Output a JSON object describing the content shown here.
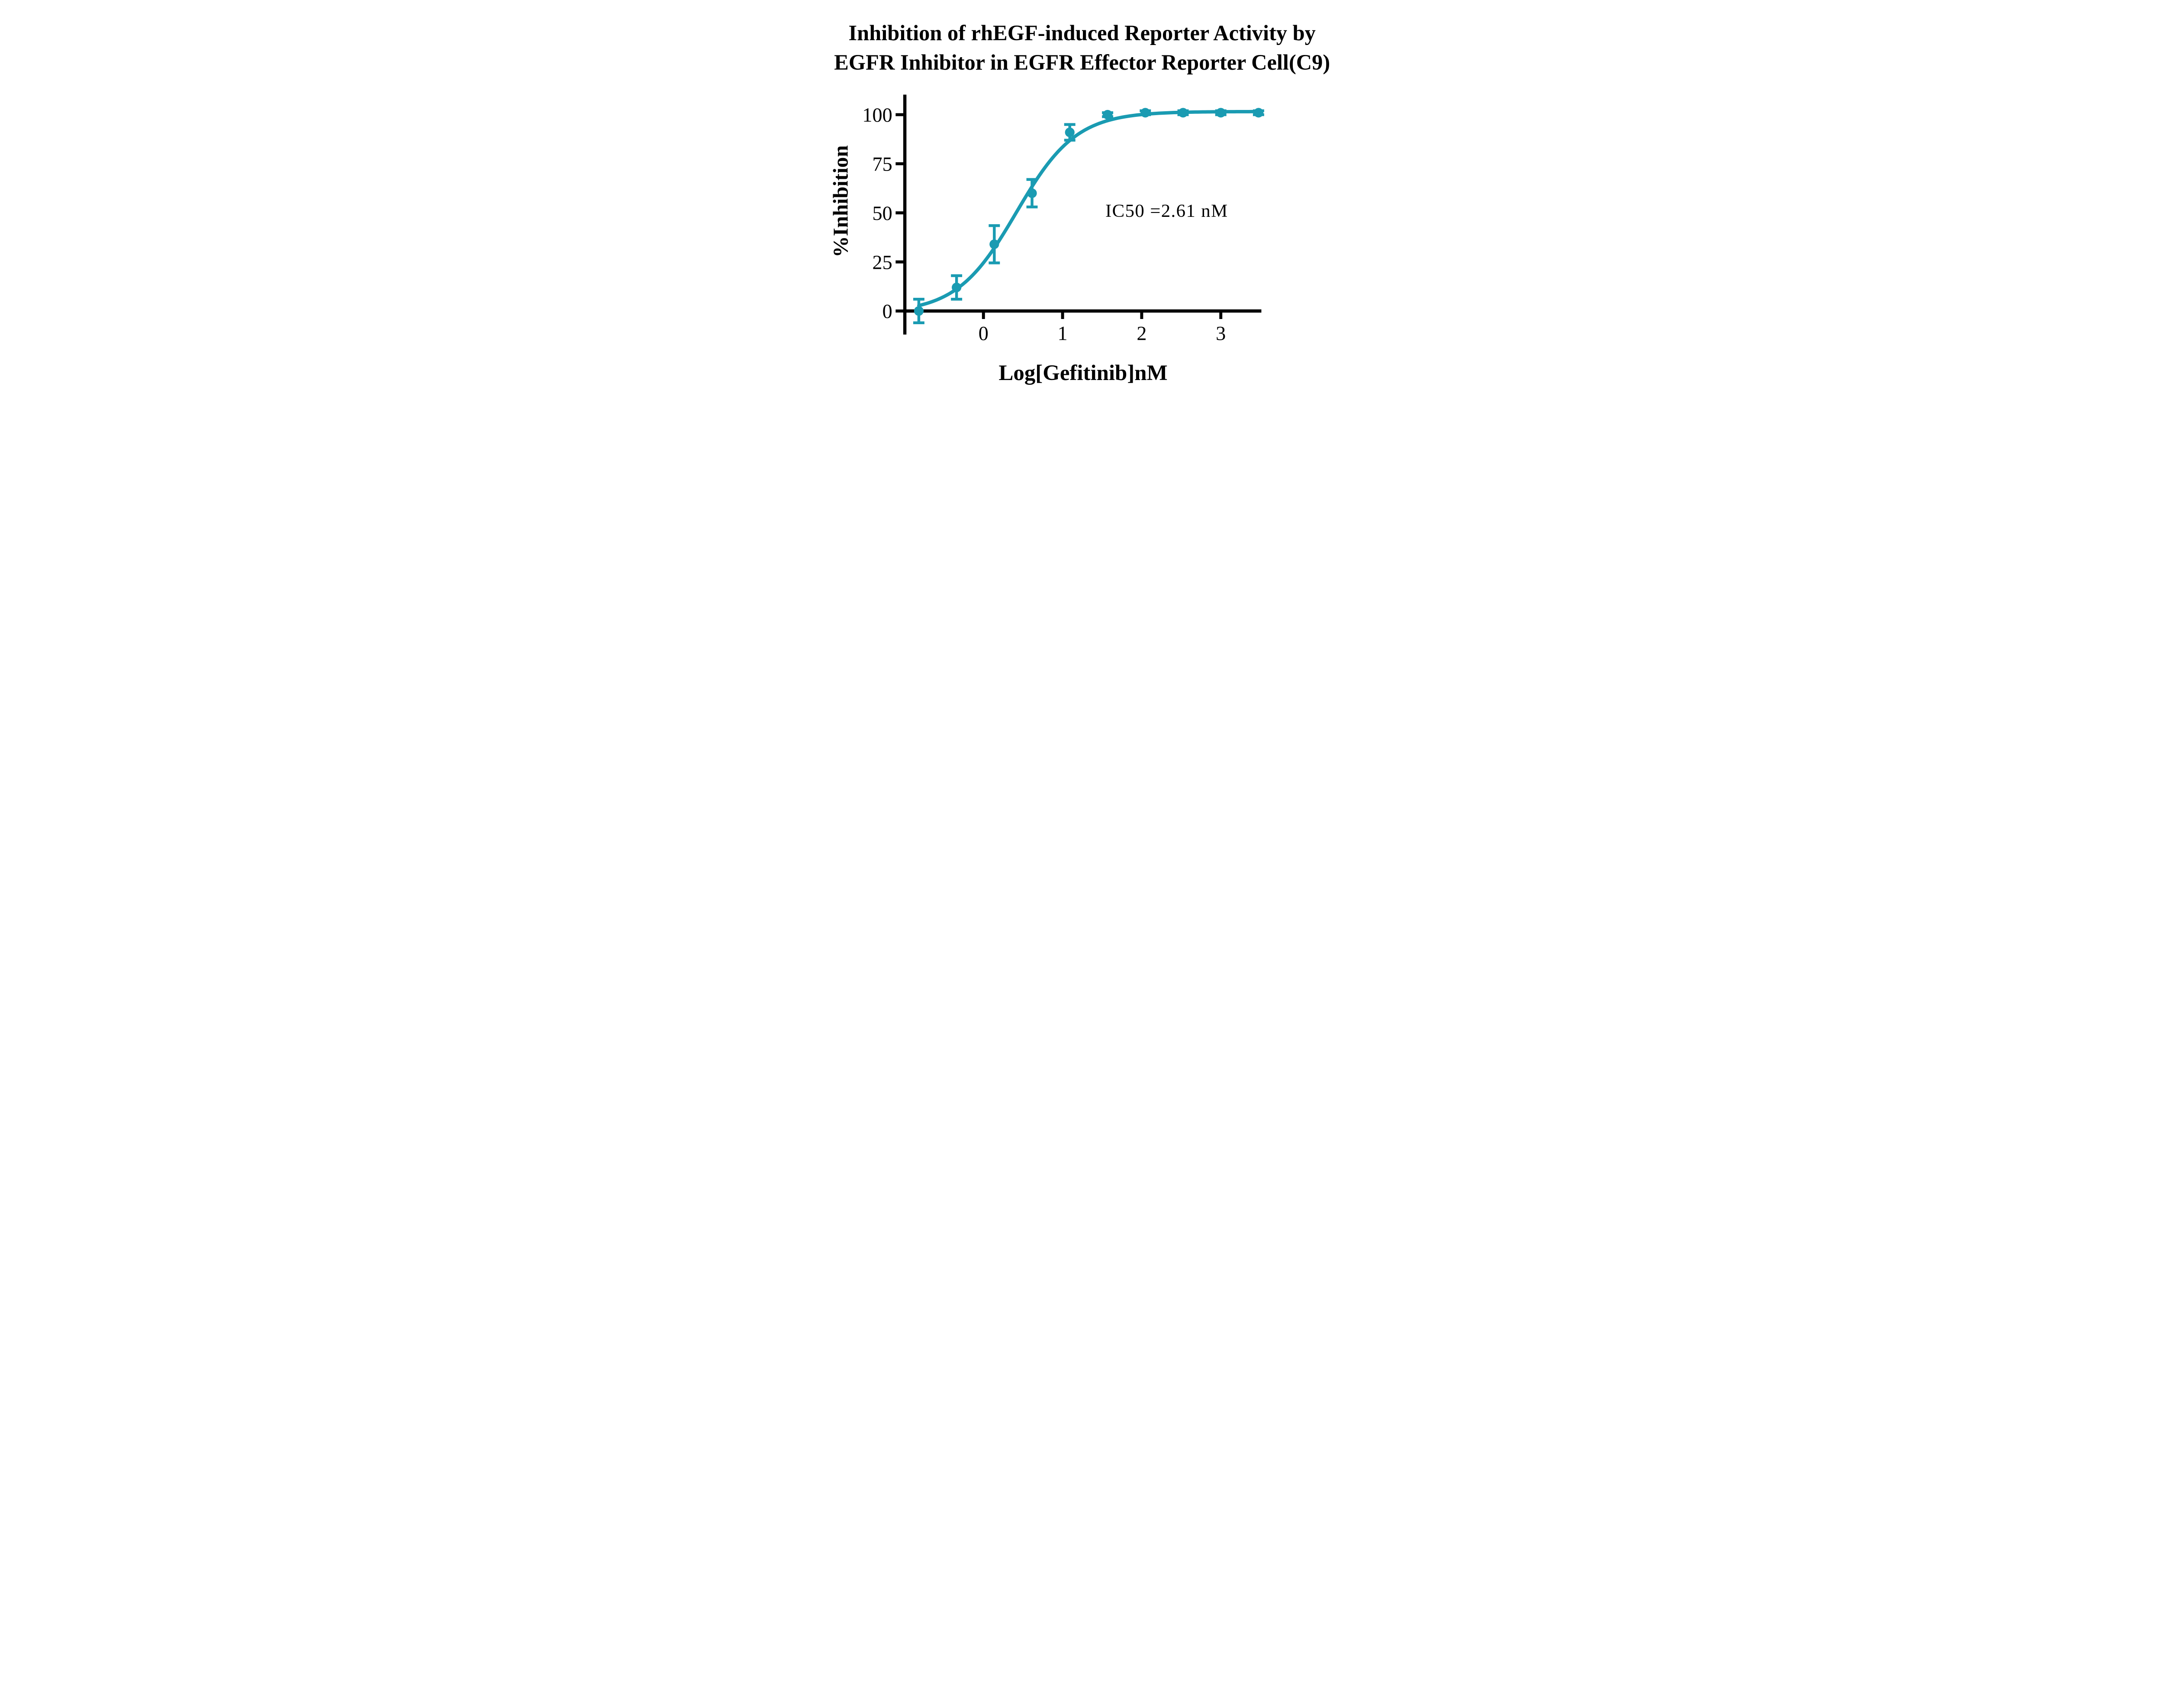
{
  "figure": {
    "title_line1": "Inhibition of rhEGF-induced Reporter Activity by",
    "title_line2": "EGFR Inhibitor in EGFR Effector Reporter Cell(C9)",
    "x_axis_label": "Log[Gefitinib]nM",
    "y_axis_label": "%Inhibition",
    "annotation": "IC50 =2.61 nM",
    "colors": {
      "series": "#1A9BB2",
      "axis": "#000000",
      "text": "#000000",
      "background": "#FFFFFF"
    }
  },
  "chart_data": {
    "type": "scatter",
    "subtype": "dose-response-curve-with-error-bars",
    "title": "Inhibition of rhEGF-induced Reporter Activity by EGFR Inhibitor in EGFR Effector Reporter Cell(C9)",
    "xlabel": "Log[Gefitinib]nM",
    "ylabel": "%Inhibition",
    "x_ticks": [
      0,
      1,
      2,
      3
    ],
    "y_ticks": [
      0,
      25,
      50,
      75,
      100
    ],
    "xlim": [
      -1.05,
      3.53
    ],
    "ylim": [
      -12,
      110
    ],
    "grid": false,
    "legend_position": "none",
    "series_name": "Gefitinib",
    "marker": "filled-circle",
    "error_bars": "symmetric-with-caps",
    "points": [
      {
        "x": -0.817,
        "y": 0,
        "err": 6
      },
      {
        "x": -0.34,
        "y": 12,
        "err": 6
      },
      {
        "x": 0.137,
        "y": 34,
        "err": 9.5
      },
      {
        "x": 0.614,
        "y": 60,
        "err": 7
      },
      {
        "x": 1.091,
        "y": 91,
        "err": 4
      },
      {
        "x": 1.569,
        "y": 100,
        "err": 1
      },
      {
        "x": 2.046,
        "y": 101,
        "err": 1
      },
      {
        "x": 2.523,
        "y": 101,
        "err": 1
      },
      {
        "x": 3.0,
        "y": 101,
        "err": 1
      },
      {
        "x": 3.477,
        "y": 101,
        "err": 1
      }
    ],
    "fit": {
      "model": "four_parameter_logistic",
      "bottom": -1.0,
      "top": 101.6,
      "log_ic50": 0.417,
      "hill_slope": 1.15
    },
    "ic50_nM": 2.61,
    "annotation": "IC50 =2.61 nM"
  }
}
